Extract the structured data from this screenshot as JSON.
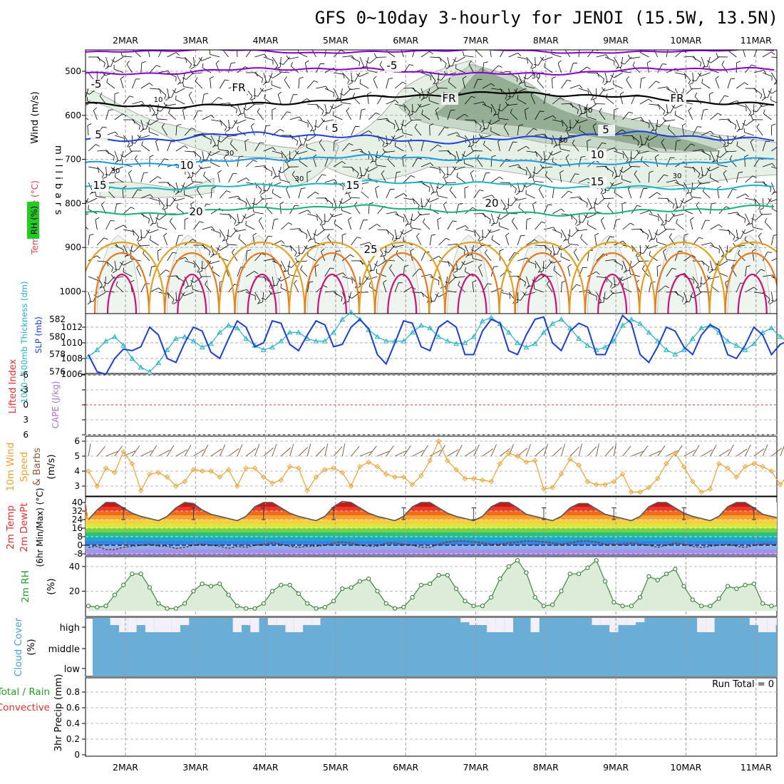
{
  "title": "GFS 0~10day 3-hourly for JENOI (15.5W, 13.5N)",
  "dates": [
    "2MAR",
    "3MAR",
    "4MAR",
    "5MAR",
    "6MAR",
    "7MAR",
    "8MAR",
    "9MAR",
    "10MAR",
    "11MAR"
  ],
  "colors": {
    "purple": "#8a00cc",
    "black": "#000000",
    "blue": "#1f3fd8",
    "sky": "#1a9ae0",
    "teal": "#18b6c0",
    "green": "#18b07a",
    "gold": "#e0a020",
    "orange": "#e87820",
    "magenta": "#d0107a",
    "rh_light": "#e4f1e4",
    "rh_mid": "#c6d8c6",
    "rh_dark": "#94ae94",
    "slp": "#1a3fd0",
    "thickness": "#22b0c8",
    "lifted": "#e03030",
    "wind10": "#f0a030",
    "cloud": "#6aaed8",
    "cloud_gap": "#f4f0fa"
  },
  "upper_air": {
    "ylabel": "millibars",
    "label_wind": "Wind (m/s)",
    "label_temp": "Temperature (°C)",
    "label_rh": "RH (%)",
    "levels": [
      "500",
      "600",
      "700",
      "800",
      "900",
      "1000"
    ],
    "isotherm_labels": [
      "-5",
      "-5",
      "FR",
      "FR",
      "FR",
      "5",
      "5",
      "5",
      "10",
      "10",
      "15",
      "15",
      "15",
      "20",
      "20",
      "25"
    ],
    "rh_labels": [
      "10",
      "30",
      "30",
      "30",
      "30",
      "30",
      "30",
      "50"
    ]
  },
  "slp_panel": {
    "label_thickness": "1000~500mb Thickness (dm)",
    "label_slp": "SLP (mb)",
    "thickness_ticks": [
      "582",
      "580",
      "578",
      "576"
    ],
    "slp_ticks": [
      "1012",
      "1010",
      "1008",
      "1006"
    ]
  },
  "stability_panel": {
    "label_li": "Lifted Index",
    "label_cape": "CAPE (J/kg)",
    "li_ticks": [
      "-6",
      "-3",
      "0",
      "3",
      "6"
    ]
  },
  "wind_panel": {
    "label_1": "10m Wind",
    "label_2": "Speed",
    "label_3": "& Barbs",
    "unit": "(m/s)",
    "ticks": [
      "6",
      "5",
      "4",
      "3"
    ]
  },
  "temp_panel": {
    "label_1": "2m Temp",
    "label_2": "2m DewPt",
    "label_3": "(6hr Min/Max) (°C)",
    "ticks": [
      "40",
      "32",
      "24",
      "16",
      "8",
      "0",
      "-8"
    ]
  },
  "rh_panel": {
    "label": "2m RH",
    "unit": "(%)",
    "ticks": [
      "40",
      "20"
    ]
  },
  "cloud_panel": {
    "label": "Cloud Cover",
    "unit": "(%)",
    "levels": [
      "high",
      "middle",
      "low"
    ]
  },
  "precip_panel": {
    "label_1": "Total / Rain",
    "label_2": "Convective",
    "label_3": "3hr Precip (mm)",
    "ticks": [
      "0.8",
      "0.6",
      "0.4",
      "0.2",
      "0"
    ],
    "run_total": "Run Total = 0"
  },
  "chart_data": [
    {
      "type": "line",
      "title": "SLP (mb)",
      "x_unit": "days since start",
      "series": [
        {
          "name": "SLP (mb)",
          "values": [
            1008.5,
            1006.3,
            1006,
            1008,
            1009.2,
            1009,
            1009.5,
            1012,
            1011,
            1008,
            1007.5,
            1010,
            1012,
            1011.5,
            1008.8,
            1008,
            1010.5,
            1012.8,
            1012,
            1009.5,
            1010,
            1012.8,
            1012.5,
            1009.8,
            1009,
            1011,
            1012.8,
            1012.3,
            1009.5,
            1009.8,
            1012,
            1013,
            1011.8,
            1008.5,
            1007.3,
            1010,
            1012.8,
            1012.5,
            1009.5,
            1009,
            1012,
            1012.8,
            1012,
            1008.5,
            1008.5,
            1011.5,
            1013,
            1012.5,
            1009,
            1008.5,
            1011,
            1013,
            1013.3,
            1010,
            1009,
            1011.5,
            1012.5,
            1012,
            1008.5,
            1008.5,
            1011,
            1013.5,
            1012.5,
            1008.5,
            1007.5,
            1009.5,
            1012,
            1011.5,
            1009.5,
            1008.5,
            1011,
            1012.3,
            1011.7,
            1008.5,
            1008,
            1009.7,
            1012,
            1011,
            1008.5,
            1009.8,
            1010.3
          ]
        }
      ],
      "ylim": [
        1005.5,
        1013.5
      ]
    },
    {
      "type": "line",
      "title": "1000~500mb Thickness (dm)",
      "series": [
        {
          "name": "Thickness (dm)",
          "values": [
            577.7,
            578.5,
            579.5,
            580,
            579,
            577.5,
            576.5,
            576,
            577,
            578.5,
            579.8,
            580,
            579.5,
            578.8,
            579.2,
            580.5,
            581.3,
            581,
            579.8,
            579,
            578.5,
            578.8,
            579.5,
            580.5,
            580.5,
            579.8,
            579.5,
            579.5,
            580.5,
            582,
            582.8,
            582,
            580.8,
            580,
            579.5,
            579.5,
            579.5,
            580.5,
            581.3,
            581,
            580,
            579.5,
            579.2,
            579.3,
            580,
            581.8,
            582.2,
            581.5,
            580.5,
            579.3,
            578.8,
            579.2,
            580.5,
            581.5,
            582,
            581,
            579.8,
            579,
            578.5,
            578.8,
            579.5,
            581.3,
            582,
            581.5,
            580.5,
            579.5,
            578.5,
            578,
            578.5,
            579.8,
            581,
            581.3,
            580.5,
            579.5,
            579,
            578.5,
            579.2,
            580.5,
            581,
            580,
            579.3
          ]
        }
      ],
      "ylim": [
        575,
        583
      ]
    },
    {
      "type": "line",
      "title": "10m Wind Speed (m/s)",
      "series": [
        {
          "name": "10m Wind Speed",
          "values": [
            4,
            3,
            4.2,
            3.9,
            5.3,
            4.5,
            2.7,
            3.8,
            3.9,
            3.6,
            3,
            3.3,
            4.1,
            4,
            4,
            3.6,
            4.1,
            3,
            4.2,
            4.2,
            3.6,
            3.2,
            3.4,
            4.3,
            4.2,
            2.7,
            3.6,
            4.1,
            4.2,
            3.9,
            3,
            4.3,
            4.6,
            4.3,
            3.8,
            3.6,
            3.6,
            3.1,
            3.7,
            4.7,
            6,
            4.7,
            4.1,
            3.5,
            3.5,
            3.4,
            3.3,
            4.5,
            5.2,
            5,
            4.6,
            4.7,
            2.8,
            2.9,
            3.8,
            4.8,
            4.4,
            3.3,
            3.1,
            3.1,
            3.3,
            3.8,
            2.6,
            2.6,
            2.9,
            3.5,
            4.5,
            5.2,
            4.3,
            3.3,
            2.6,
            2.8,
            4.5,
            4.2,
            3.6,
            4.3,
            4.5,
            4.3,
            4,
            3.1,
            3.8
          ]
        }
      ],
      "ylim": [
        2.3,
        6.4
      ]
    },
    {
      "type": "line",
      "title": "2m Temp / DewPt (°C)",
      "series": [
        {
          "name": "2m Temp",
          "values": [
            24,
            33,
            40,
            40,
            35,
            30,
            27,
            25,
            23,
            27,
            35,
            40,
            39,
            33,
            29,
            27,
            25,
            23,
            27,
            36,
            40,
            40,
            35,
            30,
            27,
            25,
            23,
            27,
            36,
            41,
            40,
            35,
            30,
            27,
            25,
            23,
            27,
            36,
            40,
            40,
            35,
            30,
            27,
            25,
            23,
            27,
            36,
            40,
            40,
            35,
            29,
            27,
            25,
            23,
            27,
            35,
            39,
            39,
            34,
            29,
            27,
            25,
            23,
            27,
            36,
            40,
            40,
            35,
            30,
            27,
            25,
            23,
            27,
            36,
            40,
            40,
            35,
            29,
            27,
            25,
            23
          ]
        },
        {
          "name": "2m DewPt",
          "values": [
            -2,
            -1,
            -4,
            -4,
            -2,
            -1,
            0,
            1,
            -1,
            -1,
            -3,
            -2,
            0,
            1,
            0,
            -1,
            -3,
            -1,
            -2,
            0,
            1,
            2,
            1,
            -1,
            -2,
            -1,
            -1,
            0,
            2,
            3,
            2,
            0,
            -1,
            -1,
            2,
            2,
            1,
            0,
            -2,
            -2,
            1,
            3,
            4,
            4,
            3,
            2,
            1,
            1,
            2,
            3,
            4,
            4,
            3,
            2,
            1,
            2,
            4,
            4,
            3,
            1,
            1,
            1,
            2,
            1,
            0,
            -2,
            0,
            2,
            1,
            -1,
            -2,
            -1,
            0,
            1,
            -1,
            -2,
            0,
            1,
            1,
            0,
            -1
          ]
        }
      ],
      "ylim": [
        -10,
        42
      ]
    },
    {
      "type": "area",
      "title": "2m RH (%)",
      "series": [
        {
          "name": "2m RH",
          "values": [
            8,
            7,
            8,
            17,
            25,
            34,
            34,
            23,
            10,
            6,
            6,
            10,
            20,
            26,
            24,
            26,
            17,
            8,
            6,
            6,
            10,
            20,
            25,
            25,
            18,
            10,
            6,
            7,
            12,
            22,
            23,
            28,
            30,
            20,
            10,
            6,
            7,
            15,
            25,
            26,
            33,
            33,
            22,
            12,
            8,
            8,
            15,
            30,
            40,
            45,
            35,
            15,
            8,
            9,
            20,
            34,
            34,
            39,
            45,
            28,
            11,
            8,
            8,
            15,
            32,
            29,
            34,
            38,
            24,
            13,
            8,
            8,
            14,
            24,
            22,
            25,
            26,
            10,
            8,
            8,
            15,
            21,
            21
          ]
        }
      ],
      "ylim": [
        4,
        48
      ]
    },
    {
      "type": "bar",
      "title": "Cloud Cover (%)",
      "series": [
        {
          "name": "high cloud gap",
          "values": [
            0,
            0,
            0,
            0.5,
            1,
            1,
            0.5,
            1,
            1,
            1,
            1,
            0.5,
            0,
            0,
            0,
            0,
            0,
            1,
            0.5,
            1,
            0,
            0.5,
            0.5,
            1,
            1,
            0.5,
            0.5,
            0,
            0,
            0,
            0,
            0,
            0,
            0,
            0,
            0,
            0,
            0,
            0,
            0,
            0,
            0,
            0,
            0.3,
            0.5,
            0.5,
            1,
            1,
            1,
            0,
            0,
            1,
            0,
            0,
            0,
            0,
            0,
            0,
            0.5,
            0.5,
            1,
            0.5,
            0.5,
            0.3,
            0,
            0,
            0,
            0,
            0,
            0,
            1,
            1,
            0,
            0,
            0,
            0,
            0.5,
            1,
            1,
            0.5,
            1
          ]
        }
      ]
    },
    {
      "type": "bar",
      "title": "3hr Precip (mm)",
      "series": [
        {
          "name": "Total",
          "values": []
        }
      ],
      "ylim": [
        0,
        1
      ]
    }
  ]
}
